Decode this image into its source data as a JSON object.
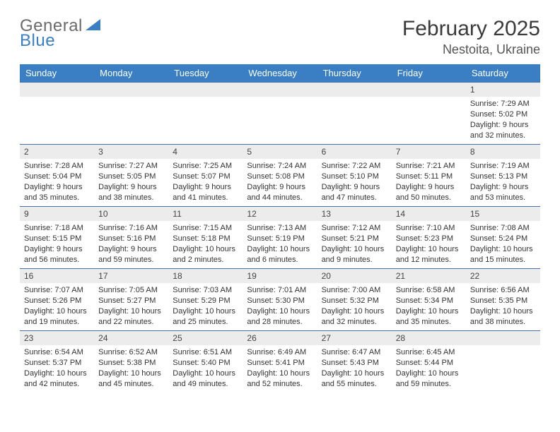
{
  "brand": {
    "word1": "General",
    "word2": "Blue",
    "accent_color": "#3a7fc3",
    "gray_color": "#6b6b6b"
  },
  "title": {
    "month": "February 2025",
    "location": "Nestoita, Ukraine"
  },
  "colors": {
    "header_bg": "#3a7fc3",
    "strip_bg": "#ececec",
    "rule": "#4a6fa5"
  },
  "dow": [
    "Sunday",
    "Monday",
    "Tuesday",
    "Wednesday",
    "Thursday",
    "Friday",
    "Saturday"
  ],
  "weeks": [
    [
      {
        "n": "",
        "sunrise": "",
        "sunset": "",
        "daylight": ""
      },
      {
        "n": "",
        "sunrise": "",
        "sunset": "",
        "daylight": ""
      },
      {
        "n": "",
        "sunrise": "",
        "sunset": "",
        "daylight": ""
      },
      {
        "n": "",
        "sunrise": "",
        "sunset": "",
        "daylight": ""
      },
      {
        "n": "",
        "sunrise": "",
        "sunset": "",
        "daylight": ""
      },
      {
        "n": "",
        "sunrise": "",
        "sunset": "",
        "daylight": ""
      },
      {
        "n": "1",
        "sunrise": "Sunrise: 7:29 AM",
        "sunset": "Sunset: 5:02 PM",
        "daylight": "Daylight: 9 hours and 32 minutes."
      }
    ],
    [
      {
        "n": "2",
        "sunrise": "Sunrise: 7:28 AM",
        "sunset": "Sunset: 5:04 PM",
        "daylight": "Daylight: 9 hours and 35 minutes."
      },
      {
        "n": "3",
        "sunrise": "Sunrise: 7:27 AM",
        "sunset": "Sunset: 5:05 PM",
        "daylight": "Daylight: 9 hours and 38 minutes."
      },
      {
        "n": "4",
        "sunrise": "Sunrise: 7:25 AM",
        "sunset": "Sunset: 5:07 PM",
        "daylight": "Daylight: 9 hours and 41 minutes."
      },
      {
        "n": "5",
        "sunrise": "Sunrise: 7:24 AM",
        "sunset": "Sunset: 5:08 PM",
        "daylight": "Daylight: 9 hours and 44 minutes."
      },
      {
        "n": "6",
        "sunrise": "Sunrise: 7:22 AM",
        "sunset": "Sunset: 5:10 PM",
        "daylight": "Daylight: 9 hours and 47 minutes."
      },
      {
        "n": "7",
        "sunrise": "Sunrise: 7:21 AM",
        "sunset": "Sunset: 5:11 PM",
        "daylight": "Daylight: 9 hours and 50 minutes."
      },
      {
        "n": "8",
        "sunrise": "Sunrise: 7:19 AM",
        "sunset": "Sunset: 5:13 PM",
        "daylight": "Daylight: 9 hours and 53 minutes."
      }
    ],
    [
      {
        "n": "9",
        "sunrise": "Sunrise: 7:18 AM",
        "sunset": "Sunset: 5:15 PM",
        "daylight": "Daylight: 9 hours and 56 minutes."
      },
      {
        "n": "10",
        "sunrise": "Sunrise: 7:16 AM",
        "sunset": "Sunset: 5:16 PM",
        "daylight": "Daylight: 9 hours and 59 minutes."
      },
      {
        "n": "11",
        "sunrise": "Sunrise: 7:15 AM",
        "sunset": "Sunset: 5:18 PM",
        "daylight": "Daylight: 10 hours and 2 minutes."
      },
      {
        "n": "12",
        "sunrise": "Sunrise: 7:13 AM",
        "sunset": "Sunset: 5:19 PM",
        "daylight": "Daylight: 10 hours and 6 minutes."
      },
      {
        "n": "13",
        "sunrise": "Sunrise: 7:12 AM",
        "sunset": "Sunset: 5:21 PM",
        "daylight": "Daylight: 10 hours and 9 minutes."
      },
      {
        "n": "14",
        "sunrise": "Sunrise: 7:10 AM",
        "sunset": "Sunset: 5:23 PM",
        "daylight": "Daylight: 10 hours and 12 minutes."
      },
      {
        "n": "15",
        "sunrise": "Sunrise: 7:08 AM",
        "sunset": "Sunset: 5:24 PM",
        "daylight": "Daylight: 10 hours and 15 minutes."
      }
    ],
    [
      {
        "n": "16",
        "sunrise": "Sunrise: 7:07 AM",
        "sunset": "Sunset: 5:26 PM",
        "daylight": "Daylight: 10 hours and 19 minutes."
      },
      {
        "n": "17",
        "sunrise": "Sunrise: 7:05 AM",
        "sunset": "Sunset: 5:27 PM",
        "daylight": "Daylight: 10 hours and 22 minutes."
      },
      {
        "n": "18",
        "sunrise": "Sunrise: 7:03 AM",
        "sunset": "Sunset: 5:29 PM",
        "daylight": "Daylight: 10 hours and 25 minutes."
      },
      {
        "n": "19",
        "sunrise": "Sunrise: 7:01 AM",
        "sunset": "Sunset: 5:30 PM",
        "daylight": "Daylight: 10 hours and 28 minutes."
      },
      {
        "n": "20",
        "sunrise": "Sunrise: 7:00 AM",
        "sunset": "Sunset: 5:32 PM",
        "daylight": "Daylight: 10 hours and 32 minutes."
      },
      {
        "n": "21",
        "sunrise": "Sunrise: 6:58 AM",
        "sunset": "Sunset: 5:34 PM",
        "daylight": "Daylight: 10 hours and 35 minutes."
      },
      {
        "n": "22",
        "sunrise": "Sunrise: 6:56 AM",
        "sunset": "Sunset: 5:35 PM",
        "daylight": "Daylight: 10 hours and 38 minutes."
      }
    ],
    [
      {
        "n": "23",
        "sunrise": "Sunrise: 6:54 AM",
        "sunset": "Sunset: 5:37 PM",
        "daylight": "Daylight: 10 hours and 42 minutes."
      },
      {
        "n": "24",
        "sunrise": "Sunrise: 6:52 AM",
        "sunset": "Sunset: 5:38 PM",
        "daylight": "Daylight: 10 hours and 45 minutes."
      },
      {
        "n": "25",
        "sunrise": "Sunrise: 6:51 AM",
        "sunset": "Sunset: 5:40 PM",
        "daylight": "Daylight: 10 hours and 49 minutes."
      },
      {
        "n": "26",
        "sunrise": "Sunrise: 6:49 AM",
        "sunset": "Sunset: 5:41 PM",
        "daylight": "Daylight: 10 hours and 52 minutes."
      },
      {
        "n": "27",
        "sunrise": "Sunrise: 6:47 AM",
        "sunset": "Sunset: 5:43 PM",
        "daylight": "Daylight: 10 hours and 55 minutes."
      },
      {
        "n": "28",
        "sunrise": "Sunrise: 6:45 AM",
        "sunset": "Sunset: 5:44 PM",
        "daylight": "Daylight: 10 hours and 59 minutes."
      },
      {
        "n": "",
        "sunrise": "",
        "sunset": "",
        "daylight": ""
      }
    ]
  ]
}
